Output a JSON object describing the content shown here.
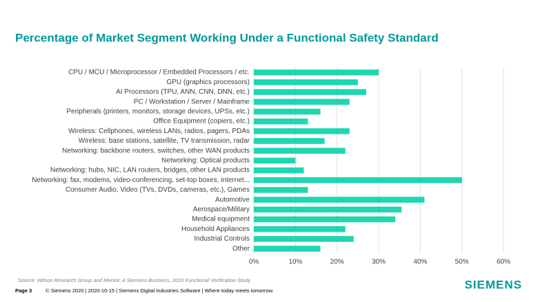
{
  "chart_data": {
    "type": "barh",
    "title": "Percentage of Market Segment Working Under a Functional Safety Standard",
    "categories": [
      "CPU / MCU / Microprocessor / Embedded Processors / etc.",
      "GPU (graphics processors)",
      "AI Processors (TPU, ANN, CNN, DNN, etc.)",
      "PC / Workstation / Server / Mainframe",
      "Peripherals (printers, monitors, storage devices, UPSs, etc.)",
      "Office Equipment (copiers, etc.)",
      "Wireless: Cellphones, wireless LANs, radios, pagers, PDAs",
      "Wireless: base stations, satellite, TV transmission, radar",
      "Networking: backbone routers, switches, other WAN products",
      "Networking: Optical products",
      "Networking: hubs, NIC, LAN routers, bridges, other LAN products",
      "Networking: fax, modems, video-conferencing, set-top boxes, internet...",
      "Consumer Audio, Video (TVs, DVDs, cameras, etc.), Games",
      "Automotive",
      "Aerospace/Military",
      "Medical equipment",
      "Household Appliances",
      "Industrial Controls",
      "Other"
    ],
    "values": [
      30,
      25,
      27,
      23,
      16,
      13,
      23,
      17,
      22,
      10,
      12,
      50,
      13,
      41,
      35.5,
      34,
      22,
      24,
      16
    ],
    "color": "#1fd6b1",
    "xlim": [
      0,
      60
    ],
    "xticks": [
      {
        "value": 0,
        "label": "0%"
      },
      {
        "value": 10,
        "label": "10%"
      },
      {
        "value": 20,
        "label": "20%"
      },
      {
        "value": 30,
        "label": "30%"
      },
      {
        "value": 40,
        "label": "40%"
      },
      {
        "value": 50,
        "label": "50%"
      },
      {
        "value": 60,
        "label": "60%"
      }
    ],
    "grid": true,
    "source": "Source:  Wilson Research Group and Mentor,  A Siemens Business, 2020 Functional Verification Study"
  },
  "footer": {
    "page": "Page 3",
    "text": "© Siemens 2020 | 2020-10-15 | Siemens Digital Industries Software | Where today meets tomorrow.",
    "logo": "SIEMENS"
  }
}
